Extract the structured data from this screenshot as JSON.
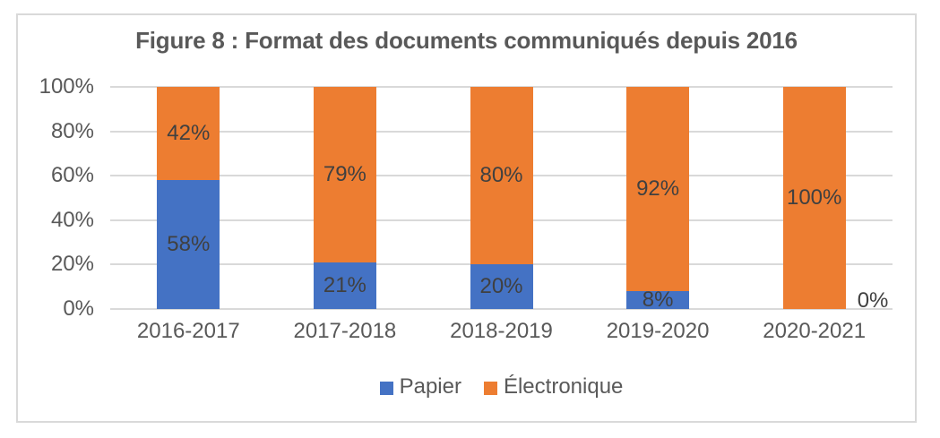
{
  "chart_data": {
    "type": "bar",
    "stacked": true,
    "title": "Figure 8 : Format des documents communiqués depuis 2016",
    "categories": [
      "2016-2017",
      "2017-2018",
      "2018-2019",
      "2019-2020",
      "2020-2021"
    ],
    "series": [
      {
        "name": "Papier",
        "color": "#4472C4",
        "values": [
          58,
          21,
          20,
          8,
          0
        ],
        "data_labels": [
          "58%",
          "21%",
          "20%",
          "8%",
          "0%"
        ]
      },
      {
        "name": "Électronique",
        "color": "#ED7D31",
        "values": [
          42,
          79,
          80,
          92,
          100
        ],
        "data_labels": [
          "42%",
          "79%",
          "80%",
          "92%",
          "100%"
        ]
      }
    ],
    "yticks": [
      {
        "label": "0%",
        "value": 0
      },
      {
        "label": "20%",
        "value": 20
      },
      {
        "label": "40%",
        "value": 40
      },
      {
        "label": "60%",
        "value": 60
      },
      {
        "label": "80%",
        "value": 80
      },
      {
        "label": "100%",
        "value": 100
      }
    ],
    "ylim": [
      0,
      100
    ],
    "xlabel": "",
    "ylabel": "",
    "grid": true,
    "legend_position": "bottom"
  },
  "colors": {
    "papier": "#4472C4",
    "electronique": "#ED7D31",
    "title_text": "#595959",
    "axis_text": "#595959",
    "data_label_text": "#404040",
    "gridline": "#D9D9D9",
    "frame_border": "#D9D9D9",
    "background": "#FFFFFF"
  }
}
